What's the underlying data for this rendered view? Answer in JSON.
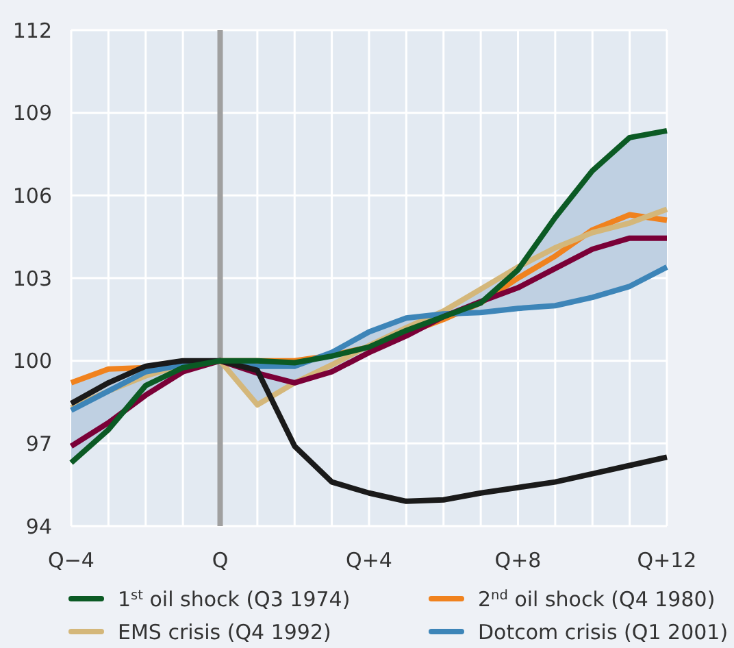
{
  "chart_data": {
    "type": "line",
    "categories": [
      "Q−4",
      null,
      null,
      null,
      "Q",
      null,
      null,
      null,
      "Q+4",
      null,
      null,
      null,
      "Q+8",
      null,
      null,
      null,
      "Q+12"
    ],
    "ylim": [
      94,
      112
    ],
    "yticks": [
      94,
      97,
      100,
      103,
      106,
      109,
      112
    ],
    "grid": true,
    "legend": "bottom",
    "ref_lines": [
      {
        "axis": "x",
        "value": "Q",
        "color": "#a0a0a0"
      }
    ],
    "series": [
      {
        "name": "1$^{st}$ oil shock (Q3 1974)",
        "color": "#0b5a24",
        "values": [
          96.3,
          97.5,
          99.1,
          99.75,
          100,
          100,
          99.93,
          100.17,
          100.5,
          101.1,
          101.6,
          102.1,
          103.3,
          105.2,
          106.9,
          108.1,
          108.35
        ],
        "lower": [
          96.3,
          97.5,
          98.75,
          99.6,
          100,
          98.4,
          99.2,
          99.6,
          100.3,
          100.9,
          101.5,
          101.75,
          101.9,
          102.0,
          102.3,
          102.7,
          103.4
        ],
        "upper": [
          99.2,
          99.7,
          99.75,
          99.85,
          100,
          100,
          100,
          100.3,
          101.05,
          101.55,
          101.8,
          102.6,
          103.4,
          105.2,
          106.9,
          108.1,
          108.35
        ]
      },
      {
        "name": "2$^{nd}$ oil shock (Q4 1980)",
        "color": "#f0821e",
        "values": [
          99.2,
          99.7,
          99.75,
          99.85,
          100,
          100,
          100,
          100.2,
          100.5,
          101,
          101.5,
          102.1,
          103,
          103.8,
          104.75,
          105.3,
          105.1
        ]
      },
      {
        "name": "EMS crisis (Q4 1992)",
        "color": "#d4b77a",
        "values": [
          98.3,
          98.9,
          99.45,
          99.85,
          100,
          98.4,
          99.2,
          99.85,
          100.55,
          101.2,
          101.8,
          102.6,
          103.4,
          104.1,
          104.65,
          105.0,
          105.5
        ]
      },
      {
        "name": "Dotcom crisis (Q1 2001)",
        "color": "#3d85b8",
        "values": [
          98.2,
          98.9,
          99.6,
          99.85,
          100,
          99.8,
          99.8,
          100.3,
          101.05,
          101.55,
          101.7,
          101.75,
          101.9,
          102.0,
          102.3,
          102.7,
          103.4
        ]
      },
      {
        "color": "#7a0037",
        "values": [
          96.9,
          97.75,
          98.75,
          99.6,
          100,
          99.55,
          99.2,
          99.6,
          100.3,
          100.9,
          101.6,
          102.15,
          102.65,
          103.35,
          104.05,
          104.45,
          104.45
        ]
      },
      {
        "color": "#1a1a1a",
        "values": [
          98.45,
          99.2,
          99.8,
          100,
          100,
          99.65,
          96.9,
          95.6,
          95.2,
          94.9,
          94.95,
          95.2,
          95.4,
          95.6,
          95.9,
          96.2,
          96.5
        ]
      }
    ]
  }
}
